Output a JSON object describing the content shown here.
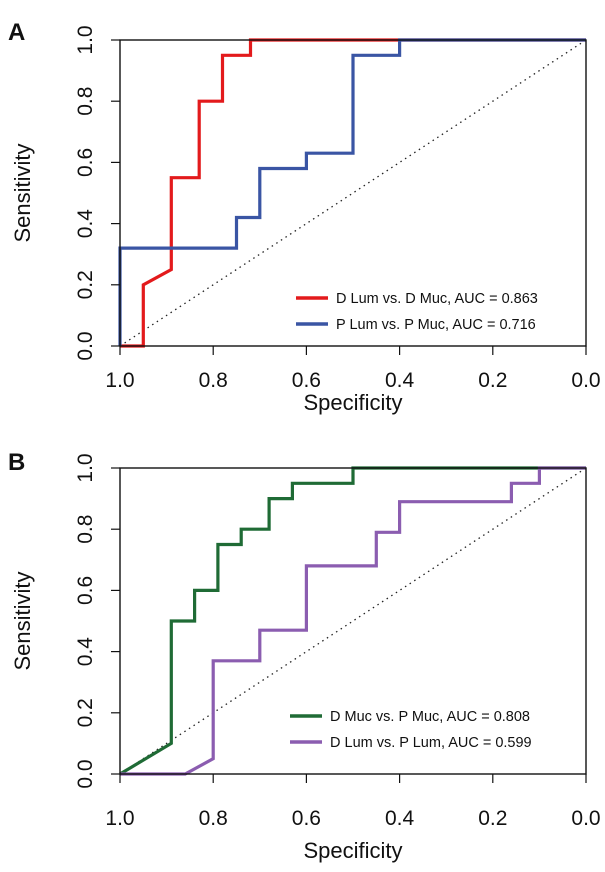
{
  "chart_data": [
    {
      "panel_label": "A",
      "type": "line",
      "xlabel": "Specificity",
      "ylabel": "Sensitivity",
      "xlim": [
        1.0,
        0.0
      ],
      "ylim": [
        0.0,
        1.0
      ],
      "x_ticks": [
        "1.0",
        "0.8",
        "0.6",
        "0.4",
        "0.2",
        "0.0"
      ],
      "y_ticks": [
        "0.0",
        "0.2",
        "0.4",
        "0.6",
        "0.8",
        "1.0"
      ],
      "legend_position": "bottom-right",
      "reference_line": "diagonal",
      "series": [
        {
          "name": "D Lum vs. D Muc, AUC = 0.863",
          "color": "#e31a1c",
          "points": [
            [
              1.0,
              0.0
            ],
            [
              0.95,
              0.0
            ],
            [
              0.95,
              0.2
            ],
            [
              0.89,
              0.25
            ],
            [
              0.89,
              0.55
            ],
            [
              0.83,
              0.55
            ],
            [
              0.83,
              0.8
            ],
            [
              0.78,
              0.8
            ],
            [
              0.78,
              0.95
            ],
            [
              0.72,
              0.95
            ],
            [
              0.72,
              1.0
            ],
            [
              0.0,
              1.0
            ]
          ]
        },
        {
          "name": "P Lum vs. P Muc, AUC = 0.716",
          "color": "#3a55a4",
          "points": [
            [
              1.0,
              0.0
            ],
            [
              1.0,
              0.32
            ],
            [
              0.75,
              0.32
            ],
            [
              0.75,
              0.42
            ],
            [
              0.7,
              0.42
            ],
            [
              0.7,
              0.58
            ],
            [
              0.6,
              0.58
            ],
            [
              0.6,
              0.63
            ],
            [
              0.5,
              0.63
            ],
            [
              0.5,
              0.95
            ],
            [
              0.4,
              0.95
            ],
            [
              0.4,
              1.0
            ],
            [
              0.0,
              1.0
            ]
          ]
        }
      ]
    },
    {
      "panel_label": "B",
      "type": "line",
      "xlabel": "Specificity",
      "ylabel": "Sensitivity",
      "xlim": [
        1.0,
        0.0
      ],
      "ylim": [
        0.0,
        1.0
      ],
      "x_ticks": [
        "1.0",
        "0.8",
        "0.6",
        "0.4",
        "0.2",
        "0.0"
      ],
      "y_ticks": [
        "0.0",
        "0.2",
        "0.4",
        "0.6",
        "0.8",
        "1.0"
      ],
      "legend_position": "bottom-right",
      "reference_line": "diagonal",
      "series": [
        {
          "name": "D Muc vs. P Muc, AUC = 0.808",
          "color": "#1f6b35",
          "points": [
            [
              1.0,
              0.0
            ],
            [
              0.89,
              0.1
            ],
            [
              0.89,
              0.5
            ],
            [
              0.84,
              0.5
            ],
            [
              0.84,
              0.6
            ],
            [
              0.79,
              0.6
            ],
            [
              0.79,
              0.75
            ],
            [
              0.74,
              0.75
            ],
            [
              0.74,
              0.8
            ],
            [
              0.68,
              0.8
            ],
            [
              0.68,
              0.9
            ],
            [
              0.63,
              0.9
            ],
            [
              0.63,
              0.95
            ],
            [
              0.5,
              0.95
            ],
            [
              0.5,
              1.0
            ],
            [
              0.0,
              1.0
            ]
          ]
        },
        {
          "name": "D Lum vs. P Lum, AUC = 0.599",
          "color": "#8b5db0",
          "points": [
            [
              1.0,
              0.0
            ],
            [
              0.86,
              0.0
            ],
            [
              0.8,
              0.05
            ],
            [
              0.8,
              0.37
            ],
            [
              0.7,
              0.37
            ],
            [
              0.7,
              0.47
            ],
            [
              0.6,
              0.47
            ],
            [
              0.6,
              0.68
            ],
            [
              0.45,
              0.68
            ],
            [
              0.45,
              0.79
            ],
            [
              0.4,
              0.79
            ],
            [
              0.4,
              0.89
            ],
            [
              0.16,
              0.89
            ],
            [
              0.16,
              0.95
            ],
            [
              0.1,
              0.95
            ],
            [
              0.1,
              1.0
            ],
            [
              0.0,
              1.0
            ]
          ]
        }
      ]
    }
  ]
}
